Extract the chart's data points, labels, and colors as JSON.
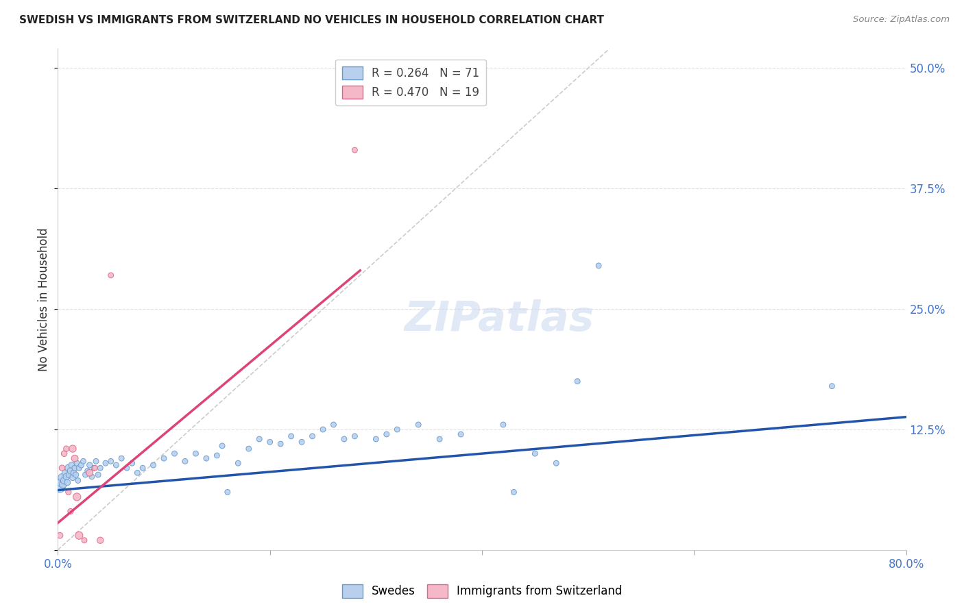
{
  "title": "SWEDISH VS IMMIGRANTS FROM SWITZERLAND NO VEHICLES IN HOUSEHOLD CORRELATION CHART",
  "source": "Source: ZipAtlas.com",
  "ylabel": "No Vehicles in Household",
  "xlim": [
    0.0,
    0.8
  ],
  "ylim": [
    -0.02,
    0.52
  ],
  "plot_ylim": [
    0.0,
    0.52
  ],
  "background_color": "#ffffff",
  "grid_color": "#e0e0e0",
  "swedes_color": "#b8d0ee",
  "swiss_color": "#f5b8c8",
  "swedes_edge": "#6699cc",
  "swiss_edge": "#dd6688",
  "blue_line_color": "#2255aa",
  "pink_line_color": "#dd4477",
  "dashed_line_color": "#cccccc",
  "tick_label_color": "#4477cc",
  "swedes_x": [
    0.002,
    0.003,
    0.004,
    0.005,
    0.006,
    0.007,
    0.008,
    0.009,
    0.01,
    0.011,
    0.012,
    0.013,
    0.014,
    0.015,
    0.016,
    0.017,
    0.018,
    0.019,
    0.02,
    0.022,
    0.024,
    0.026,
    0.028,
    0.03,
    0.032,
    0.034,
    0.036,
    0.038,
    0.04,
    0.045,
    0.05,
    0.055,
    0.06,
    0.065,
    0.07,
    0.075,
    0.08,
    0.09,
    0.1,
    0.11,
    0.12,
    0.13,
    0.14,
    0.15,
    0.155,
    0.16,
    0.17,
    0.18,
    0.19,
    0.2,
    0.21,
    0.22,
    0.23,
    0.24,
    0.25,
    0.26,
    0.27,
    0.28,
    0.3,
    0.31,
    0.32,
    0.34,
    0.36,
    0.38,
    0.42,
    0.43,
    0.45,
    0.47,
    0.49,
    0.51,
    0.73
  ],
  "swedes_y": [
    0.065,
    0.07,
    0.075,
    0.068,
    0.072,
    0.08,
    0.076,
    0.07,
    0.085,
    0.078,
    0.082,
    0.088,
    0.075,
    0.08,
    0.085,
    0.078,
    0.09,
    0.072,
    0.085,
    0.088,
    0.092,
    0.078,
    0.082,
    0.088,
    0.076,
    0.085,
    0.092,
    0.078,
    0.085,
    0.09,
    0.092,
    0.088,
    0.095,
    0.085,
    0.09,
    0.08,
    0.085,
    0.088,
    0.095,
    0.1,
    0.092,
    0.1,
    0.095,
    0.098,
    0.108,
    0.06,
    0.09,
    0.105,
    0.115,
    0.112,
    0.11,
    0.118,
    0.112,
    0.118,
    0.125,
    0.13,
    0.115,
    0.118,
    0.115,
    0.12,
    0.125,
    0.13,
    0.115,
    0.12,
    0.13,
    0.06,
    0.1,
    0.09,
    0.175,
    0.295,
    0.17
  ],
  "swedes_size": [
    120,
    80,
    70,
    60,
    55,
    50,
    45,
    40,
    55,
    50,
    45,
    40,
    38,
    38,
    35,
    35,
    35,
    32,
    35,
    35,
    32,
    32,
    32,
    35,
    32,
    32,
    32,
    32,
    32,
    32,
    32,
    32,
    32,
    32,
    32,
    32,
    32,
    32,
    32,
    32,
    32,
    32,
    32,
    32,
    32,
    32,
    32,
    32,
    32,
    32,
    32,
    32,
    32,
    32,
    32,
    32,
    32,
    32,
    32,
    32,
    32,
    32,
    32,
    32,
    32,
    32,
    32,
    32,
    32,
    32,
    32
  ],
  "swiss_x": [
    0.002,
    0.004,
    0.006,
    0.008,
    0.01,
    0.012,
    0.014,
    0.016,
    0.018,
    0.02,
    0.025,
    0.03,
    0.035,
    0.04,
    0.05,
    0.28
  ],
  "swiss_y": [
    0.015,
    0.085,
    0.1,
    0.105,
    0.06,
    0.04,
    0.105,
    0.095,
    0.055,
    0.015,
    0.01,
    0.08,
    0.085,
    0.01,
    0.285,
    0.415
  ],
  "swiss_size": [
    40,
    38,
    38,
    35,
    35,
    35,
    55,
    50,
    65,
    65,
    32,
    50,
    32,
    45,
    32,
    32
  ],
  "swedes_line_x": [
    0.0,
    0.8
  ],
  "swedes_line_y": [
    0.062,
    0.138
  ],
  "swiss_line_x": [
    0.0,
    0.285
  ],
  "swiss_line_y": [
    0.028,
    0.29
  ],
  "diag_line_x": [
    0.0,
    0.52
  ],
  "diag_line_y": [
    0.0,
    0.52
  ]
}
